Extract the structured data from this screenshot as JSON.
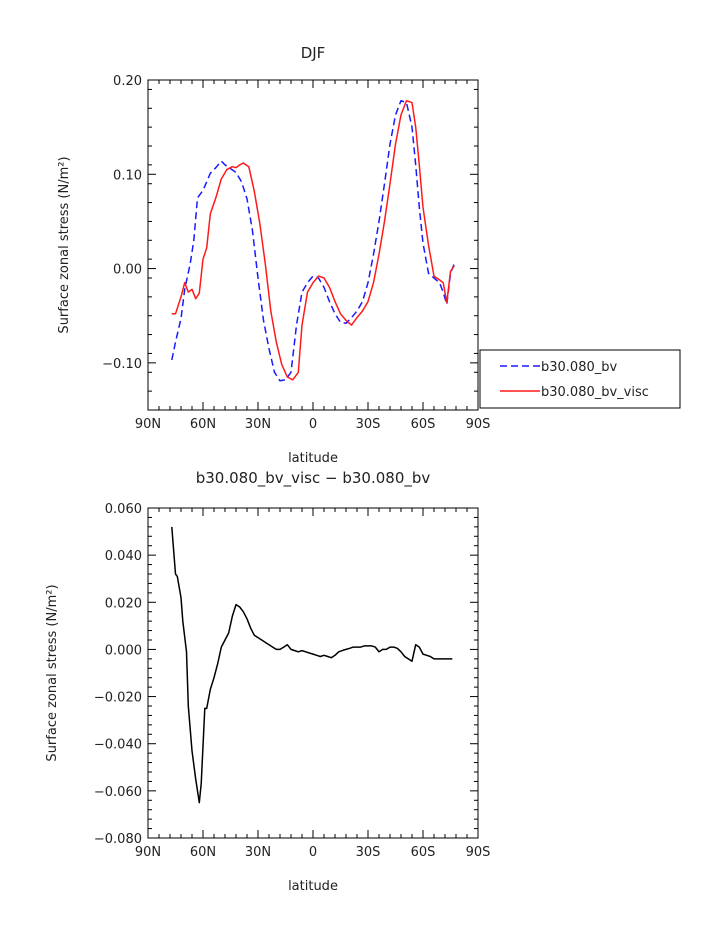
{
  "chart_data": [
    {
      "type": "line",
      "title": "DJF",
      "xlabel": "latitude",
      "ylabel": "Surface zonal stress (N/m²)",
      "xlim": [
        90,
        -90
      ],
      "ylim": [
        -0.15,
        0.2
      ],
      "x_tick_values": [
        90,
        60,
        30,
        0,
        -30,
        -60,
        -90
      ],
      "x_tick_labels": [
        "90N",
        "60N",
        "30N",
        "0",
        "30S",
        "60S",
        "90S"
      ],
      "y_tick_values": [
        -0.1,
        0.0,
        0.1,
        0.2
      ],
      "y_tick_labels": [
        "−0.10",
        "0.00",
        "0.10",
        "0.20"
      ],
      "legend_position": "right",
      "series": [
        {
          "name": "b30.080_bv",
          "color": "#1a1aff",
          "dash": "dashed",
          "x": [
            77,
            75,
            72,
            70,
            67,
            65,
            63,
            60,
            58,
            56,
            53,
            50,
            48,
            45,
            42,
            39,
            36,
            33,
            30,
            27,
            24,
            21,
            18,
            15,
            12,
            9,
            6,
            3,
            0,
            -3,
            -6,
            -9,
            -12,
            -15,
            -18,
            -21,
            -24,
            -27,
            -30,
            -33,
            -36,
            -39,
            -42,
            -45,
            -48,
            -51,
            -54,
            -56,
            -58,
            -60,
            -63,
            -66,
            -69,
            -71,
            -73,
            -75,
            -77
          ],
          "y": [
            -0.097,
            -0.078,
            -0.053,
            -0.022,
            0.005,
            0.03,
            0.075,
            0.083,
            0.092,
            0.101,
            0.107,
            0.114,
            0.11,
            0.106,
            0.102,
            0.092,
            0.074,
            0.04,
            -0.01,
            -0.055,
            -0.085,
            -0.11,
            -0.119,
            -0.118,
            -0.11,
            -0.06,
            -0.025,
            -0.015,
            -0.008,
            -0.01,
            -0.02,
            -0.035,
            -0.048,
            -0.057,
            -0.058,
            -0.052,
            -0.045,
            -0.035,
            -0.015,
            0.015,
            0.05,
            0.09,
            0.132,
            0.163,
            0.178,
            0.176,
            0.15,
            0.11,
            0.065,
            0.027,
            -0.005,
            -0.01,
            -0.015,
            -0.025,
            -0.038,
            -0.005,
            0.005
          ]
        },
        {
          "name": "b30.080_bv_visc",
          "color": "#ff1a1a",
          "dash": "solid",
          "x": [
            77,
            75,
            72,
            70,
            68,
            66,
            64,
            62,
            60,
            58,
            56,
            53,
            50,
            47,
            44,
            42,
            40,
            38,
            35,
            32,
            29,
            26,
            23,
            20,
            17,
            14,
            11,
            8,
            6,
            3,
            0,
            -3,
            -6,
            -9,
            -12,
            -15,
            -18,
            -21,
            -24,
            -27,
            -30,
            -33,
            -36,
            -39,
            -42,
            -45,
            -48,
            -51,
            -54,
            -56,
            -58,
            -60,
            -63,
            -66,
            -69,
            -71,
            -73,
            -75,
            -77
          ],
          "y": [
            -0.048,
            -0.048,
            -0.03,
            -0.015,
            -0.025,
            -0.022,
            -0.032,
            -0.026,
            0.01,
            0.022,
            0.058,
            0.075,
            0.095,
            0.105,
            0.108,
            0.107,
            0.11,
            0.112,
            0.108,
            0.082,
            0.048,
            0.005,
            -0.045,
            -0.078,
            -0.102,
            -0.115,
            -0.118,
            -0.11,
            -0.06,
            -0.025,
            -0.015,
            -0.008,
            -0.01,
            -0.02,
            -0.035,
            -0.048,
            -0.055,
            -0.06,
            -0.052,
            -0.045,
            -0.035,
            -0.015,
            0.015,
            0.05,
            0.09,
            0.132,
            0.163,
            0.178,
            0.176,
            0.15,
            0.11,
            0.065,
            0.025,
            -0.008,
            -0.012,
            -0.015,
            -0.036,
            -0.003,
            0.003
          ]
        }
      ]
    },
    {
      "type": "line",
      "title": "b30.080_bv_visc − b30.080_bv",
      "xlabel": "latitude",
      "ylabel": "Surface zonal stress (N/m²)",
      "xlim": [
        90,
        -90
      ],
      "ylim": [
        -0.08,
        0.06
      ],
      "x_tick_values": [
        90,
        60,
        30,
        0,
        -30,
        -60,
        -90
      ],
      "x_tick_labels": [
        "90N",
        "60N",
        "30N",
        "0",
        "30S",
        "60S",
        "90S"
      ],
      "y_tick_values": [
        -0.08,
        -0.06,
        -0.04,
        -0.02,
        0.0,
        0.02,
        0.04,
        0.06
      ],
      "y_tick_labels": [
        "−0.080",
        "−0.060",
        "−0.040",
        "−0.020",
        "0.000",
        "0.020",
        "0.040",
        "0.060"
      ],
      "series": [
        {
          "color": "#000000",
          "dash": "solid",
          "x": [
            77,
            75,
            74,
            72,
            71,
            69,
            68,
            66,
            64,
            62,
            61,
            59,
            58,
            56,
            54,
            52,
            50,
            48,
            46,
            44,
            42,
            40,
            38,
            36,
            34,
            32,
            30,
            28,
            26,
            24,
            22,
            20,
            18,
            16,
            14,
            12,
            10,
            8,
            6,
            4,
            2,
            0,
            -2,
            -4,
            -6,
            -8,
            -10,
            -12,
            -14,
            -16,
            -18,
            -20,
            -22,
            -24,
            -26,
            -28,
            -30,
            -32,
            -34,
            -36,
            -38,
            -40,
            -42,
            -44,
            -46,
            -48,
            -50,
            -52,
            -54,
            -56,
            -58,
            -60,
            -62,
            -64,
            -66,
            -68,
            -70,
            -72,
            -74,
            -76
          ],
          "y": [
            0.052,
            0.032,
            0.031,
            0.022,
            0.012,
            -0.001,
            -0.024,
            -0.043,
            -0.055,
            -0.065,
            -0.057,
            -0.025,
            -0.025,
            -0.017,
            -0.012,
            -0.006,
            0.001,
            0.004,
            0.007,
            0.014,
            0.019,
            0.018,
            0.016,
            0.013,
            0.009,
            0.006,
            0.005,
            0.004,
            0.003,
            0.002,
            0.001,
            0.0,
            0.0,
            0.001,
            0.002,
            0.0,
            -0.0005,
            -0.001,
            -0.0005,
            -0.001,
            -0.0015,
            -0.002,
            -0.0025,
            -0.003,
            -0.0025,
            -0.003,
            -0.0035,
            -0.0025,
            -0.001,
            -0.0005,
            0.0,
            0.0005,
            0.001,
            0.001,
            0.001,
            0.0015,
            0.0015,
            0.0015,
            0.001,
            -0.001,
            0.0,
            0.0,
            0.001,
            0.001,
            0.0005,
            -0.001,
            -0.003,
            -0.004,
            -0.005,
            0.002,
            0.001,
            -0.002,
            -0.0025,
            -0.003,
            -0.004,
            -0.004,
            -0.004,
            -0.004,
            -0.004,
            -0.004
          ]
        }
      ]
    }
  ]
}
